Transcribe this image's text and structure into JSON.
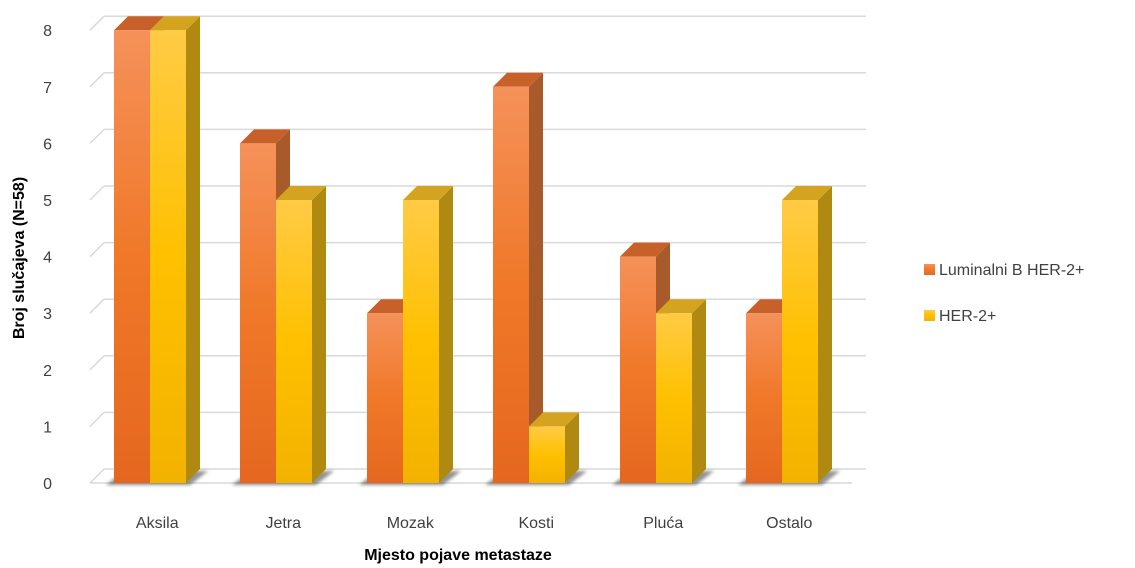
{
  "chart_data": {
    "type": "bar",
    "title": "",
    "xlabel": "Mjesto pojave metastaze",
    "ylabel": "Broj slučajeva (N=58)",
    "categories": [
      "Aksila",
      "Jetra",
      "Mozak",
      "Kosti",
      "Pluća",
      "Ostalo"
    ],
    "series": [
      {
        "name": "Luminalni B HER-2+",
        "values": [
          8,
          6,
          3,
          7,
          4,
          3
        ]
      },
      {
        "name": "HER-2+",
        "values": [
          8,
          5,
          5,
          1,
          3,
          5
        ]
      }
    ],
    "ylim": [
      0,
      8
    ],
    "yticks": [
      0,
      1,
      2,
      3,
      4,
      5,
      6,
      7,
      8
    ],
    "grid": true,
    "style": "3d-column",
    "legend_position": "right",
    "colors": {
      "series": [
        "#F07828",
        "#FFC000"
      ],
      "grid": "#D9D9D9"
    }
  }
}
